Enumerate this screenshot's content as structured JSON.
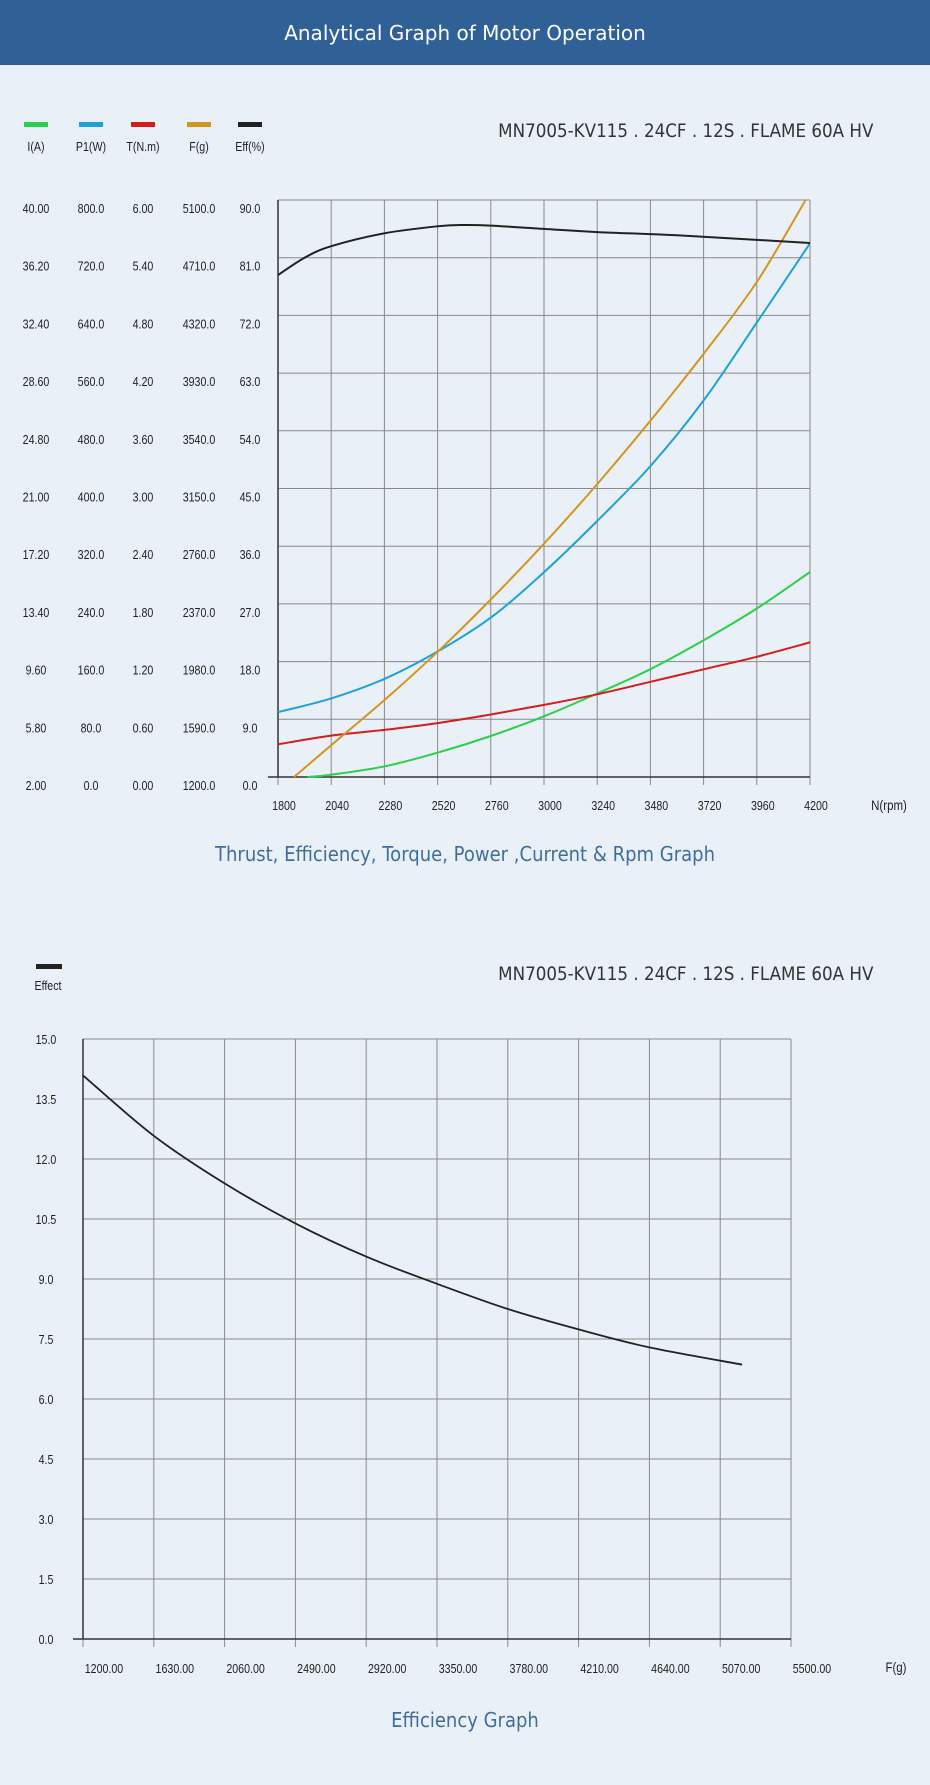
{
  "header": {
    "title": "Analytical Graph of Motor Operation"
  },
  "colors": {
    "header": "#2f6196",
    "background": "#eaf0f7",
    "caption": "#3f6d9e"
  },
  "chart_data": [
    {
      "type": "line",
      "model": "MN7005-KV115 . 24CF . 12S . FLAME 60A HV",
      "caption": "Thrust, Efficiency, Torque, Power ,Current & Rpm Graph",
      "xlabel": "N(rpm)",
      "xlim": [
        1800,
        4200
      ],
      "x_ticks": [
        "1800",
        "2040",
        "2280",
        "2520",
        "2760",
        "3000",
        "3240",
        "3480",
        "3720",
        "3960",
        "4200"
      ],
      "grid": true,
      "legend_placement": "top-left",
      "series": [
        {
          "name": "I(A)",
          "color": "#2bd04a",
          "ylim": [
            2,
            40
          ],
          "y_ticks": [
            "2.00",
            "5.80",
            "9.60",
            "13.40",
            "17.20",
            "21.00",
            "24.80",
            "28.60",
            "32.40",
            "36.20",
            "40.00"
          ],
          "x": [
            1933,
            2040,
            2280,
            2520,
            2760,
            3000,
            3240,
            3480,
            3720,
            3960,
            4200
          ],
          "y": [
            2.0,
            2.15,
            2.7,
            3.6,
            4.7,
            6.0,
            7.5,
            9.1,
            11.0,
            13.1,
            15.5
          ]
        },
        {
          "name": "P1(W)",
          "color": "#1fa1d8",
          "ylim": [
            0,
            800
          ],
          "y_ticks": [
            "0.0",
            "80.0",
            "160.0",
            "240.0",
            "320.0",
            "400.0",
            "480.0",
            "560.0",
            "640.0",
            "720.0",
            "800.0"
          ],
          "x": [
            1800,
            2040,
            2280,
            2520,
            2760,
            3000,
            3240,
            3480,
            3720,
            3960,
            4200
          ],
          "y": [
            90,
            109,
            136,
            174,
            221,
            284,
            355,
            431,
            522,
            630,
            740
          ]
        },
        {
          "name": "T(N.m)",
          "color": "#d41d1d",
          "ylim": [
            0,
            6
          ],
          "y_ticks": [
            "0.00",
            "0.60",
            "1.20",
            "1.80",
            "2.40",
            "3.00",
            "3.60",
            "4.20",
            "4.80",
            "5.40",
            "6.00"
          ],
          "x": [
            1800,
            2040,
            2280,
            2520,
            2760,
            3000,
            3240,
            3480,
            3720,
            3960,
            4200
          ],
          "y": [
            0.34,
            0.43,
            0.49,
            0.56,
            0.65,
            0.75,
            0.86,
            0.99,
            1.12,
            1.25,
            1.4
          ]
        },
        {
          "name": "F(g)",
          "color": "#d4951e",
          "ylim": [
            1200,
            5100
          ],
          "y_ticks": [
            "1200.0",
            "1590.0",
            "1980.0",
            "2370.0",
            "2760.0",
            "3150.0",
            "3540.0",
            "3930.0",
            "4320.0",
            "4710.0",
            "5100.0"
          ],
          "x": [
            1872,
            2040,
            2280,
            2520,
            2760,
            3000,
            3240,
            3480,
            3720,
            3960,
            4180
          ],
          "y": [
            1200,
            1415,
            1720,
            2046,
            2400,
            2777,
            3180,
            3608,
            4060,
            4546,
            5100
          ]
        },
        {
          "name": "Eff(%)",
          "color": "#222222",
          "ylim": [
            0,
            90
          ],
          "y_ticks": [
            "0.0",
            "9.0",
            "18.0",
            "27.0",
            "36.0",
            "45.0",
            "54.0",
            "63.0",
            "72.0",
            "81.0",
            "90.0"
          ],
          "x": [
            1800,
            1920,
            2040,
            2280,
            2520,
            2640,
            2760,
            3000,
            3240,
            3600,
            4200
          ],
          "y": [
            78.3,
            81.0,
            82.8,
            84.8,
            85.9,
            86.1,
            86.0,
            85.5,
            85.0,
            84.5,
            83.3
          ]
        }
      ]
    },
    {
      "type": "line",
      "model": "MN7005-KV115 . 24CF . 12S . FLAME 60A HV",
      "caption": "Efficiency Graph",
      "xlabel": "F(g)",
      "xlim": [
        1200,
        5500
      ],
      "ylim": [
        0,
        15
      ],
      "x_ticks": [
        "1200.00",
        "1630.00",
        "2060.00",
        "2490.00",
        "2920.00",
        "3350.00",
        "3780.00",
        "4210.00",
        "4640.00",
        "5070.00",
        "5500.00"
      ],
      "y_ticks": [
        "0.0",
        "1.5",
        "3.0",
        "4.5",
        "6.0",
        "7.5",
        "9.0",
        "10.5",
        "12.0",
        "13.5",
        "15.0"
      ],
      "grid": true,
      "legend_placement": "top-left",
      "series": [
        {
          "name": "Effect",
          "color": "#222222",
          "x": [
            1200,
            1630,
            2060,
            2490,
            2920,
            3350,
            3780,
            4210,
            4640,
            5203
          ],
          "y": [
            14.09,
            12.58,
            11.39,
            10.39,
            9.56,
            8.88,
            8.25,
            7.74,
            7.29,
            6.86
          ]
        }
      ]
    }
  ]
}
